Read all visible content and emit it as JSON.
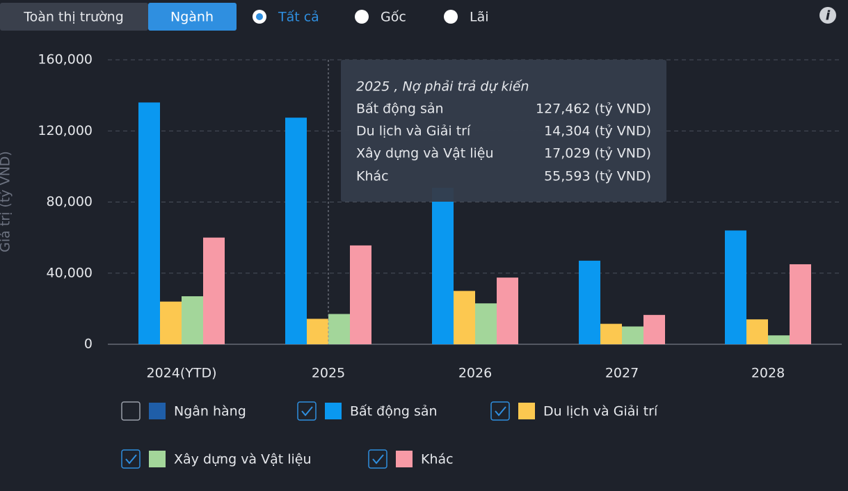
{
  "controls": {
    "tabs": [
      "Toàn thị trường",
      "Ngành"
    ],
    "radios": [
      "Tất cả",
      "Gốc",
      "Lãi"
    ]
  },
  "tooltip": {
    "title": "2025 , Nợ phải trả dự kiến",
    "rows": [
      [
        "Bất động sản",
        "127,462 (tỷ VND)"
      ],
      [
        "Du lịch và Giải trí",
        "14,304 (tỷ VND)"
      ],
      [
        "Xây dựng và Vật liệu",
        "17,029 (tỷ VND)"
      ],
      [
        "Khác",
        "55,593 (tỷ VND)"
      ]
    ]
  },
  "chart_data": {
    "type": "bar",
    "y_label": "Giá trị (tỷ VND)",
    "categories": [
      "2024(YTD)",
      "2025",
      "2026",
      "2027",
      "2028"
    ],
    "series": [
      {
        "name": "Ngân hàng",
        "color": "#1f5ea8",
        "visible": false,
        "values": [
          null,
          null,
          null,
          null,
          null
        ]
      },
      {
        "name": "Bất động sản",
        "color": "#0a98f0",
        "values": [
          136000,
          127462,
          88000,
          47000,
          64000
        ]
      },
      {
        "name": "Du lịch và Giải trí",
        "color": "#fcc850",
        "values": [
          24000,
          14304,
          30000,
          11500,
          14000
        ]
      },
      {
        "name": "Xây dựng và Vật liệu",
        "color": "#a3d69a",
        "values": [
          27000,
          17029,
          23000,
          10000,
          5000
        ]
      },
      {
        "name": "Khác",
        "color": "#f79aa6",
        "values": [
          60000,
          55593,
          37500,
          16500,
          45000
        ]
      }
    ],
    "ylim": [
      0,
      160000
    ],
    "yticks": [
      0,
      {
        "value": 40000,
        "label": "40,000"
      },
      {
        "value": 80000,
        "label": "80,000"
      },
      {
        "value": 120000,
        "label": "120,000"
      },
      {
        "value": 160000,
        "label": "160,000"
      }
    ],
    "grid": true
  }
}
